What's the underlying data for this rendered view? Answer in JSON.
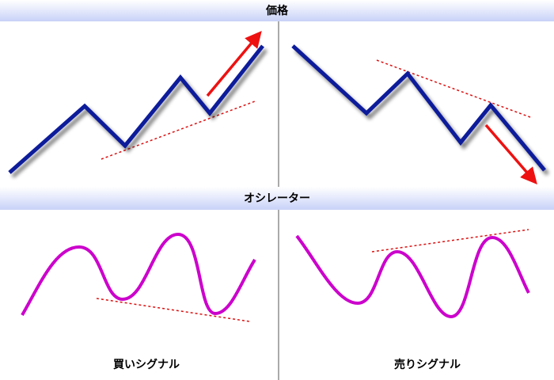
{
  "price_panel": {
    "title": "価格"
  },
  "oscillator_panel": {
    "title": "オシレーター"
  },
  "signals": {
    "buy": "買いシグナル",
    "sell": "売りシグナル"
  }
}
